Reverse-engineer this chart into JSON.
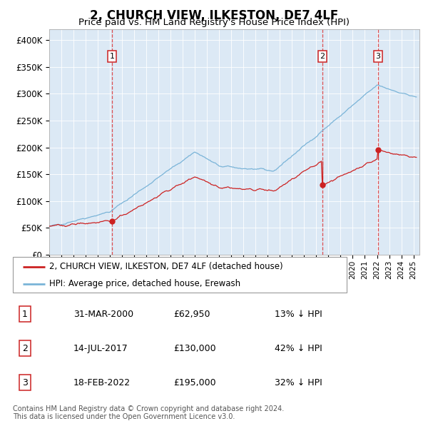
{
  "title": "2, CHURCH VIEW, ILKESTON, DE7 4LF",
  "subtitle": "Price paid vs. HM Land Registry's House Price Index (HPI)",
  "title_fontsize": 12,
  "subtitle_fontsize": 9.5,
  "hpi_color": "#7ab4d8",
  "price_color": "#cc2222",
  "bg_color": "#dce9f5",
  "transaction_prices": [
    62950,
    130000,
    195000
  ],
  "transaction_labels": [
    "1",
    "2",
    "3"
  ],
  "legend_entries": [
    "2, CHURCH VIEW, ILKESTON, DE7 4LF (detached house)",
    "HPI: Average price, detached house, Erewash"
  ],
  "table_rows": [
    [
      "1",
      "31-MAR-2000",
      "£62,950",
      "13% ↓ HPI"
    ],
    [
      "2",
      "14-JUL-2017",
      "£130,000",
      "42% ↓ HPI"
    ],
    [
      "3",
      "18-FEB-2022",
      "£195,000",
      "32% ↓ HPI"
    ]
  ],
  "footer": "Contains HM Land Registry data © Crown copyright and database right 2024.\nThis data is licensed under the Open Government Licence v3.0.",
  "ylim": [
    0,
    420000
  ],
  "yticks": [
    0,
    50000,
    100000,
    150000,
    200000,
    250000,
    300000,
    350000,
    400000
  ],
  "ytick_labels": [
    "£0",
    "£50K",
    "£100K",
    "£150K",
    "£200K",
    "£250K",
    "£300K",
    "£350K",
    "£400K"
  ]
}
